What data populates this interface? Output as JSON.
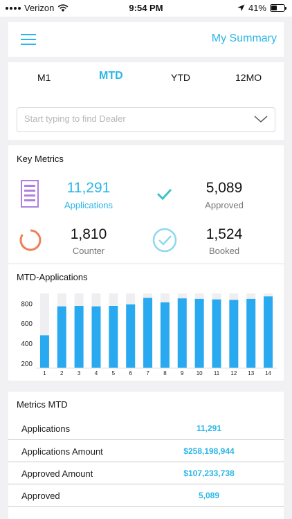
{
  "status": {
    "carrier": "Verizon",
    "time": "9:54 PM",
    "battery": "41%"
  },
  "header": {
    "title": "My Summary",
    "menu_icon": "hamburger-menu-icon"
  },
  "periods": {
    "tabs": [
      "M1",
      "MTD",
      "YTD",
      "12MO"
    ],
    "selected": "MTD"
  },
  "dealer_search": {
    "placeholder": "Start typing to find Dealer",
    "value": ""
  },
  "key_metrics": {
    "title": "Key Metrics",
    "items": [
      {
        "value": "11,291",
        "label": "Applications",
        "icon": "document-icon",
        "color": "#b07fe0"
      },
      {
        "value": "5,089",
        "label": "Approved",
        "icon": "checkmark-icon",
        "color": "#3cc3c3"
      },
      {
        "value": "1,810",
        "label": "Counter",
        "icon": "refresh-icon",
        "color": "#ef7f55"
      },
      {
        "value": "1,524",
        "label": "Booked",
        "icon": "check-circle-icon",
        "color": "#8ed8ee"
      }
    ]
  },
  "chart_data": {
    "type": "bar",
    "title": "MTD-Applications",
    "categories": [
      "1",
      "2",
      "3",
      "4",
      "5",
      "6",
      "7",
      "8",
      "9",
      "10",
      "11",
      "12",
      "13",
      "14"
    ],
    "values": [
      480,
      770,
      775,
      770,
      775,
      790,
      855,
      810,
      850,
      845,
      840,
      835,
      845,
      870
    ],
    "ylim": [
      150,
      900
    ],
    "yticks": [
      200,
      400,
      600,
      800
    ],
    "bar_color": "#29aaf0",
    "track_color": "#efeff1",
    "grid": false
  },
  "metrics_table": {
    "title": "Metrics MTD",
    "rows": [
      {
        "label": "Applications",
        "value": "11,291"
      },
      {
        "label": "Applications Amount",
        "value": "$258,198,944"
      },
      {
        "label": "Approved Amount",
        "value": "$107,233,738"
      },
      {
        "label": "Approved",
        "value": "5,089"
      }
    ]
  }
}
